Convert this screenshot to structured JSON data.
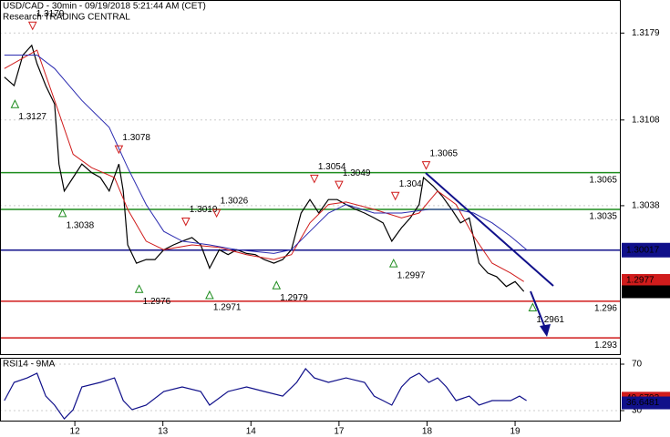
{
  "chart_data": [
    {
      "type": "line",
      "title": "USD/CAD - 30min - 09/19/2018 5:21:44 AM (CET)",
      "subtitle": "Research TRADING CENTRAL",
      "xlim": [
        -0.85,
        6.19
      ],
      "ylim": [
        1.2916,
        1.3206
      ],
      "yticks": [
        1.3179,
        1.3108,
        1.3038
      ],
      "grid": true,
      "series": [
        {
          "color": "#000000",
          "x": [
            -0.8,
            -0.69,
            -0.59,
            -0.49,
            -0.43,
            -0.33,
            -0.23,
            -0.18,
            -0.12,
            -0.02,
            0.08,
            0.19,
            0.29,
            0.39,
            0.5,
            0.55,
            0.6,
            0.7,
            0.81,
            0.91,
            1.01,
            1.12,
            1.22,
            1.33,
            1.43,
            1.53,
            1.64,
            1.74,
            1.84,
            1.95,
            2.05,
            2.15,
            2.26,
            2.36,
            2.46,
            2.57,
            2.67,
            2.77,
            2.88,
            2.98,
            3.08,
            3.19,
            3.29,
            3.4,
            3.5,
            3.6,
            3.71,
            3.81,
            3.91,
            3.96,
            4.07,
            4.17,
            4.28,
            4.38,
            4.48,
            4.59,
            4.69,
            4.79,
            4.9,
            5.0,
            5.1
          ],
          "values": [
            1.3143,
            1.3136,
            1.3161,
            1.3169,
            1.3154,
            1.3136,
            1.3121,
            1.3072,
            1.305,
            1.3061,
            1.3072,
            1.3065,
            1.3061,
            1.305,
            1.3072,
            1.305,
            1.3006,
            1.2991,
            1.2994,
            1.2994,
            1.3002,
            1.3006,
            1.3009,
            1.3012,
            1.3006,
            1.2987,
            1.3002,
            1.2998,
            1.3002,
            1.2999,
            1.2998,
            1.2994,
            1.2991,
            1.2994,
            1.3002,
            1.3032,
            1.3043,
            1.3032,
            1.3043,
            1.3043,
            1.3039,
            1.3035,
            1.3032,
            1.3028,
            1.3024,
            1.3009,
            1.302,
            1.3028,
            1.3039,
            1.3061,
            1.3054,
            1.3046,
            1.3035,
            1.3024,
            1.3028,
            1.2991,
            1.2983,
            1.298,
            1.2972,
            1.2976,
            1.2968
          ]
        },
        {
          "color": "#d01c1c",
          "x": [
            -0.8,
            -0.43,
            -0.23,
            -0.02,
            0.19,
            0.45,
            0.6,
            0.81,
            1.01,
            1.33,
            1.64,
            1.95,
            2.26,
            2.46,
            2.67,
            2.88,
            3.08,
            3.4,
            3.71,
            3.91,
            4.12,
            4.33,
            4.53,
            4.74,
            4.95,
            5.1
          ],
          "values": [
            1.315,
            1.3165,
            1.3124,
            1.308,
            1.3069,
            1.3061,
            1.3035,
            1.3009,
            1.3002,
            1.3006,
            1.3004,
            1.2998,
            1.2994,
            1.2998,
            1.3024,
            1.3039,
            1.3041,
            1.3035,
            1.3028,
            1.3032,
            1.305,
            1.3039,
            1.3013,
            1.2991,
            1.2983,
            1.2976
          ]
        },
        {
          "color": "#2b2bb0",
          "x": [
            -0.8,
            -0.43,
            -0.23,
            0.08,
            0.39,
            0.6,
            0.81,
            1.01,
            1.22,
            1.53,
            1.84,
            2.26,
            2.46,
            2.67,
            2.88,
            3.08,
            3.4,
            3.71,
            4.02,
            4.33,
            4.53,
            4.74,
            4.95,
            5.13
          ],
          "values": [
            1.3161,
            1.3161,
            1.315,
            1.3124,
            1.3102,
            1.3069,
            1.3039,
            1.3017,
            1.3009,
            1.3006,
            1.3002,
            1.2999,
            1.3002,
            1.3017,
            1.3032,
            1.3039,
            1.3032,
            1.3032,
            1.3035,
            1.3035,
            1.3032,
            1.3024,
            1.3013,
            1.3002
          ]
        }
      ],
      "levels": [
        {
          "value": 1.3065,
          "color": "#1e8c1e"
        },
        {
          "value": 1.3035,
          "color": "#1e8c1e"
        },
        {
          "value": 1.30017,
          "color": "#10108a",
          "boxed": true
        },
        {
          "value": 1.296,
          "color": "#d01c1c"
        },
        {
          "value": 1.293,
          "color": "#d01c1c"
        }
      ],
      "price_tags": [
        {
          "value": 1.2977,
          "color": "#d01c1c"
        },
        {
          "value": 1.29677,
          "color": "#000000"
        }
      ],
      "annotations": [
        {
          "x": -0.48,
          "value": 1.3179,
          "kind": "high"
        },
        {
          "x": -0.68,
          "value": 1.3127,
          "kind": "low"
        },
        {
          "x": 0.5,
          "value": 1.3078,
          "kind": "high"
        },
        {
          "x": -0.14,
          "value": 1.3038,
          "kind": "low"
        },
        {
          "x": 0.73,
          "value": 1.2976,
          "kind": "low"
        },
        {
          "x": 1.26,
          "value": 1.3019,
          "kind": "high"
        },
        {
          "x": 1.61,
          "value": 1.3026,
          "kind": "high"
        },
        {
          "x": 1.53,
          "value": 1.2971,
          "kind": "low"
        },
        {
          "x": 2.29,
          "value": 1.2979,
          "kind": "low"
        },
        {
          "x": 2.72,
          "value": 1.3054,
          "kind": "high"
        },
        {
          "x": 3.0,
          "value": 1.3049,
          "kind": "high"
        },
        {
          "x": 3.64,
          "value": 1.304,
          "kind": "high"
        },
        {
          "x": 3.62,
          "value": 1.2997,
          "kind": "low"
        },
        {
          "x": 3.99,
          "value": 1.3065,
          "kind": "high"
        },
        {
          "x": 5.2,
          "value": 1.2961,
          "kind": "low"
        }
      ]
    },
    {
      "type": "line",
      "title": "RSI14 - 9MA",
      "xlim": [
        -0.85,
        6.19
      ],
      "ylim": [
        20.6,
        75.5
      ],
      "yticks": [
        70,
        30
      ],
      "xticks": [
        {
          "value": 0,
          "label": "12"
        },
        {
          "value": 1,
          "label": "13"
        },
        {
          "value": 2,
          "label": "14"
        },
        {
          "value": 3,
          "label": "17"
        },
        {
          "value": 4,
          "label": "18"
        },
        {
          "value": 5,
          "label": "19"
        }
      ],
      "grid": true,
      "series": [
        {
          "color": "#10108a",
          "x": [
            -0.8,
            -0.69,
            -0.54,
            -0.43,
            -0.33,
            -0.23,
            -0.12,
            -0.02,
            0.08,
            0.29,
            0.45,
            0.55,
            0.65,
            0.81,
            1.01,
            1.22,
            1.43,
            1.53,
            1.74,
            1.95,
            2.15,
            2.36,
            2.52,
            2.62,
            2.72,
            2.88,
            3.08,
            3.29,
            3.4,
            3.5,
            3.6,
            3.71,
            3.81,
            3.91,
            4.02,
            4.12,
            4.22,
            4.33,
            4.48,
            4.59,
            4.74,
            4.95,
            5.05,
            5.13
          ],
          "values": [
            38.6,
            54.3,
            58.2,
            62.2,
            42.5,
            34.7,
            22.9,
            30.8,
            50.4,
            54.3,
            58.2,
            38.6,
            30.8,
            34.7,
            46.5,
            50.4,
            46.5,
            34.7,
            46.5,
            50.4,
            46.5,
            42.5,
            54.3,
            66.1,
            58.2,
            54.3,
            58.2,
            54.3,
            42.5,
            38.6,
            34.7,
            50.4,
            58.2,
            62.2,
            54.3,
            58.2,
            50.4,
            38.6,
            42.5,
            34.7,
            38.6,
            38.6,
            42.5,
            38.6
          ]
        }
      ],
      "price_tags": [
        {
          "value": 40.6793,
          "color": "#d01c1c"
        },
        {
          "value": 36.6481,
          "color": "#10108a"
        }
      ]
    }
  ]
}
